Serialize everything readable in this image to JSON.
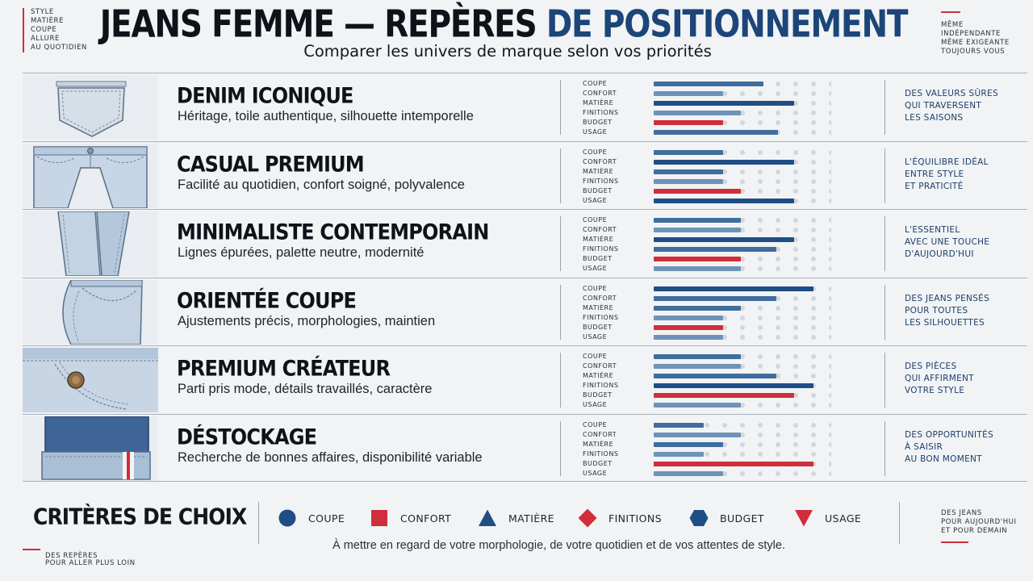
{
  "header": {
    "title_part1": "JEANS FEMME — REPÈRES ",
    "title_part2": "DE POSITIONNEMENT",
    "subtitle": "Comparer les univers de marque selon vos priorités",
    "corner_left": [
      "STYLE",
      "MATIÈRE",
      "COUPE",
      "ALLURE",
      "AU QUOTIDIEN"
    ],
    "corner_right": [
      "MÊME",
      "INDÉPENDANTE",
      "MÊME EXIGEANTE",
      "TOUJOURS VOUS"
    ]
  },
  "metric_labels": [
    "COUPE",
    "CONFORT",
    "MATIÈRE",
    "FINITIONS",
    "BUDGET",
    "USAGE"
  ],
  "colors": {
    "navy": "#1f4e85",
    "steel": "#3f6d9e",
    "light_steel": "#6f93b8",
    "red": "#cf2e3a",
    "track": "#d3d7dc"
  },
  "rows": [
    {
      "name": "DENIM ICONIQUE",
      "description": "Héritage, toile authentique, silhouette intemporelle",
      "thumbnail": "back-pocket",
      "levels": [
        0.62,
        0.39,
        0.79,
        0.49,
        0.39,
        0.7
      ],
      "quote": [
        "DES VALEURS SÛRES",
        "QUI TRAVERSENT",
        "LES SAISONS"
      ]
    },
    {
      "name": "CASUAL PREMIUM",
      "description": "Facilité au quotidien, confort soigné, polyvalence",
      "thumbnail": "jeans-front",
      "levels": [
        0.39,
        0.79,
        0.39,
        0.39,
        0.49,
        0.79
      ],
      "quote": [
        "L'ÉQUILIBRE IDÉAL",
        "ENTRE STYLE",
        "ET PRATICITÉ"
      ]
    },
    {
      "name": "MINIMALISTE CONTEMPORAIN",
      "description": "Lignes épurées, palette neutre, modernité",
      "thumbnail": "straight-leg",
      "levels": [
        0.49,
        0.49,
        0.79,
        0.69,
        0.49,
        0.49
      ],
      "quote": [
        "L'ESSENTIEL",
        "AVEC UNE TOUCHE",
        "D'AUJOURD'HUI"
      ]
    },
    {
      "name": "ORIENTÉE COUPE",
      "description": "Ajustements précis, morphologies, maintien",
      "thumbnail": "hip-side",
      "levels": [
        0.9,
        0.69,
        0.49,
        0.39,
        0.39,
        0.39
      ],
      "quote": [
        "DES JEANS PENSÉS",
        "POUR TOUTES",
        "LES SILHOUETTES"
      ]
    },
    {
      "name": "PREMIUM CRÉATEUR",
      "description": "Parti pris mode, détails travaillés, caractère",
      "thumbnail": "button-detail",
      "levels": [
        0.49,
        0.49,
        0.69,
        0.9,
        0.79,
        0.49
      ],
      "quote": [
        "DES PIÈCES",
        "QUI AFFIRMENT",
        "VOTRE STYLE"
      ]
    },
    {
      "name": "DÉSTOCKAGE",
      "description": "Recherche de bonnes affaires, disponibilité variable",
      "thumbnail": "cuff-selvedge",
      "levels": [
        0.28,
        0.49,
        0.39,
        0.28,
        0.9,
        0.39
      ],
      "quote": [
        "DES OPPORTUNITÉS",
        "À SAISIR",
        "AU BON MOMENT"
      ]
    }
  ],
  "footer": {
    "criteria_title": "CRITÈRES DE CHOIX",
    "legend": [
      {
        "label": "COUPE",
        "shape": "circle",
        "color": "#1f4e85"
      },
      {
        "label": "CONFORT",
        "shape": "square",
        "color": "#cf2e3a"
      },
      {
        "label": "MATIÈRE",
        "shape": "triangle-up",
        "color": "#1f4e85"
      },
      {
        "label": "FINITIONS",
        "shape": "diamond",
        "color": "#cf2e3a"
      },
      {
        "label": "BUDGET",
        "shape": "hexagon",
        "color": "#1f4e85"
      },
      {
        "label": "USAGE",
        "shape": "triangle-down",
        "color": "#cf2e3a"
      }
    ],
    "note": "À mettre en regard de votre morphologie, de votre quotidien et de vos attentes de style.",
    "corner_left": [
      "DES REPÈRES",
      "POUR ALLER PLUS LOIN"
    ],
    "corner_right": [
      "DES JEANS",
      "POUR AUJOURD'HUI",
      "ET POUR DEMAIN"
    ]
  }
}
